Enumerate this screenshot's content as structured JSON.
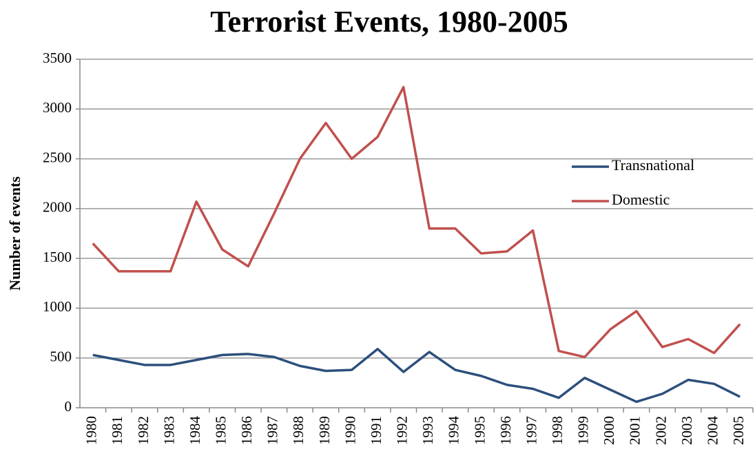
{
  "chart_data": {
    "type": "line",
    "title": "Terrorist Events, 1980-2005",
    "y_label": "Number of events",
    "categories": [
      "1980",
      "1981",
      "1982",
      "1983",
      "1984",
      "1985",
      "1986",
      "1987",
      "1988",
      "1989",
      "1990",
      "1991",
      "1992",
      "1993",
      "1994",
      "1995",
      "1996",
      "1997",
      "1998",
      "1999",
      "2000",
      "2001",
      "2002",
      "2003",
      "2004",
      "2005"
    ],
    "series": [
      {
        "name": "Transnational",
        "color": "#2c4f7c",
        "values": [
          530,
          480,
          430,
          430,
          480,
          530,
          540,
          510,
          420,
          370,
          380,
          590,
          360,
          560,
          380,
          320,
          230,
          190,
          100,
          300,
          180,
          60,
          140,
          280,
          240,
          110
        ]
      },
      {
        "name": "Domestic",
        "color": "#c0504d",
        "values": [
          1650,
          1370,
          1370,
          1370,
          2070,
          1590,
          1420,
          1950,
          2500,
          2860,
          2500,
          2720,
          3220,
          1800,
          1800,
          1550,
          1570,
          1780,
          570,
          510,
          790,
          970,
          610,
          690,
          550,
          840
        ]
      }
    ],
    "ylim": [
      0,
      3500
    ],
    "yticks": [
      0,
      500,
      1000,
      1500,
      2000,
      2500,
      3000,
      3500
    ],
    "grid": true,
    "legend": "right"
  }
}
